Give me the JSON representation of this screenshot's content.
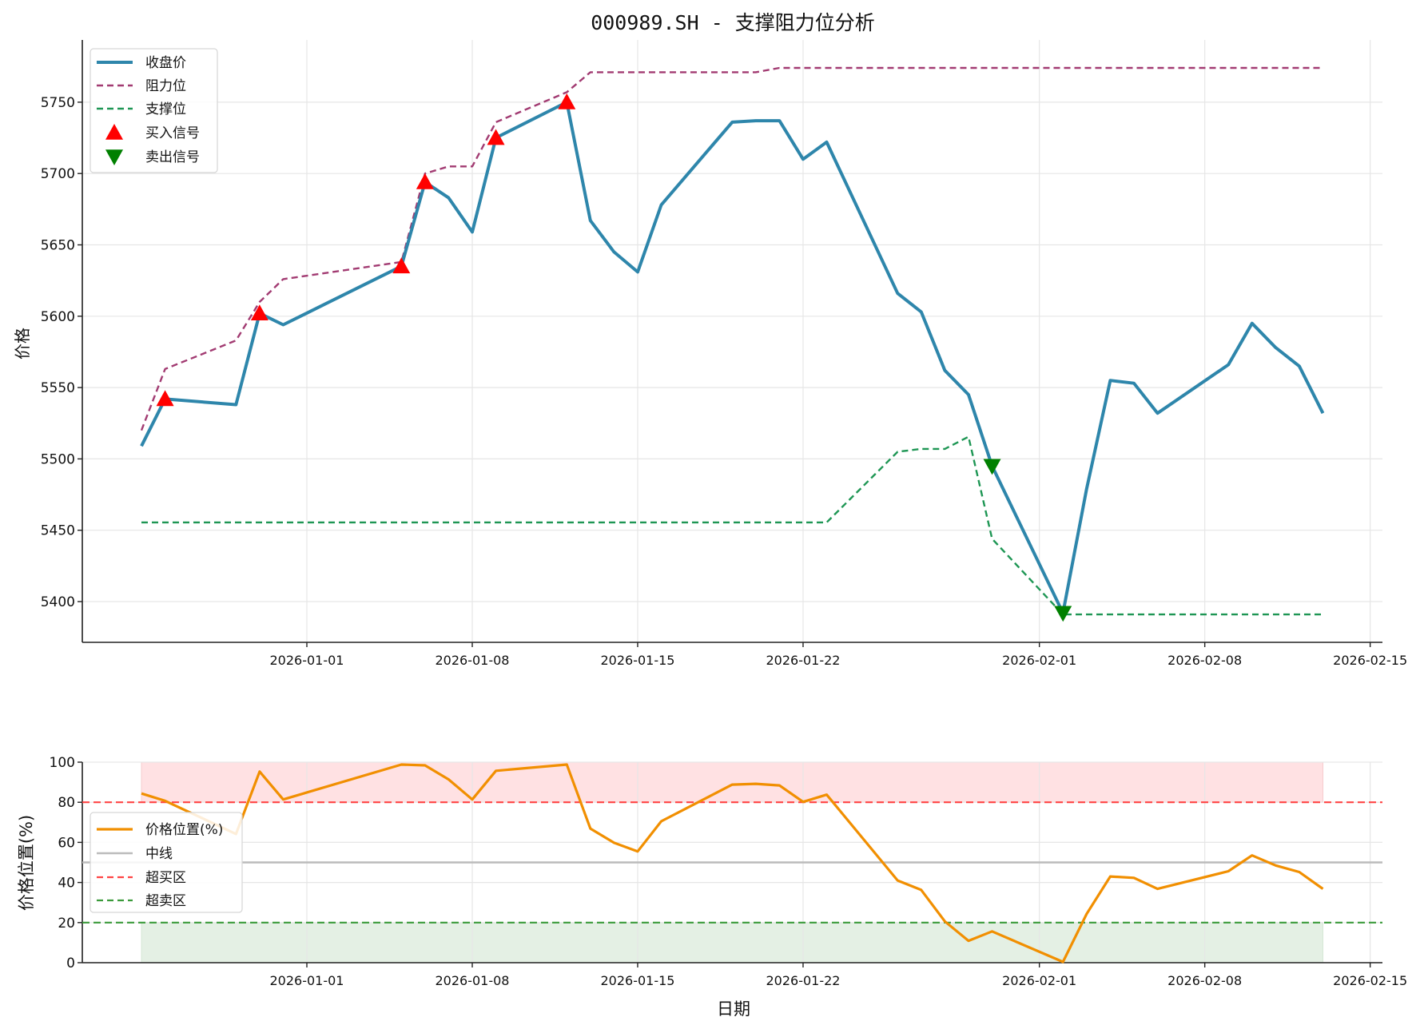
{
  "title": "000989.SH - 支撑阻力位分析",
  "colors": {
    "close": "#2E86AB",
    "resistance": "#A23B72",
    "support": "#1E9654",
    "buy": "#FF0000",
    "sell": "#008000",
    "position": "#F18F01",
    "midline": "#BBBBBB",
    "overbought": "#FF4444",
    "oversold": "#3A9A3A",
    "overbought_fill": "#FFE1E3",
    "oversold_fill": "#E4F0E4",
    "grid": "#E6E6E6",
    "axis": "#222222"
  },
  "chart_data": [
    {
      "type": "line",
      "title": "000989.SH - 支撑阻力位分析",
      "xlabel": "",
      "ylabel": "价格",
      "ylim": [
        5370,
        5795
      ],
      "yticks": [
        5400,
        5450,
        5500,
        5550,
        5600,
        5650,
        5700,
        5750
      ],
      "xticks": [
        "2026-01-01",
        "2026-01-08",
        "2026-01-15",
        "2026-01-22",
        "2026-02-01",
        "2026-02-08",
        "2026-02-15"
      ],
      "grid": true,
      "legend_position": "upper left",
      "x": [
        "2025-12-25",
        "2025-12-26",
        "2025-12-29",
        "2025-12-30",
        "2025-12-31",
        "2026-01-05",
        "2026-01-06",
        "2026-01-07",
        "2026-01-08",
        "2026-01-09",
        "2026-01-12",
        "2026-01-13",
        "2026-01-14",
        "2026-01-15",
        "2026-01-16",
        "2026-01-19",
        "2026-01-20",
        "2026-01-21",
        "2026-01-22",
        "2026-01-23",
        "2026-01-26",
        "2026-01-27",
        "2026-01-28",
        "2026-01-29",
        "2026-01-30",
        "2026-02-02",
        "2026-02-03",
        "2026-02-04",
        "2026-02-05",
        "2026-02-06",
        "2026-02-09",
        "2026-02-10",
        "2026-02-11",
        "2026-02-12",
        "2026-02-13"
      ],
      "series": [
        {
          "name": "收盘价",
          "style": "solid",
          "values": [
            5509,
            5542,
            5538,
            5602,
            5594,
            5635,
            5694,
            5683,
            5659,
            5725,
            5750,
            5667,
            5645,
            5631,
            5678,
            5736,
            5737,
            5737,
            5710,
            5722,
            5616,
            5603,
            5562,
            5545,
            5495,
            5392,
            5479,
            5555,
            5553,
            5532,
            5566,
            5595,
            5578,
            5565,
            5532
          ]
        },
        {
          "name": "阻力位",
          "style": "dashed",
          "values": [
            5520,
            5563,
            5583,
            5610,
            5626,
            5638,
            5700,
            5705,
            5705,
            5736,
            5757,
            5771,
            5771,
            5771,
            5771,
            5771,
            5771,
            5774,
            5774,
            5774,
            5774,
            5774,
            5774,
            5774,
            5774,
            5774,
            5774,
            5774,
            5774,
            5774,
            5774,
            5774,
            5774,
            5774,
            5774
          ]
        },
        {
          "name": "支撑位",
          "style": "dashed",
          "values": [
            5455.5,
            5455.5,
            5455.5,
            5455.5,
            5455.5,
            5455.5,
            5455.5,
            5455.5,
            5455.5,
            5455.5,
            5455.5,
            5455.5,
            5455.5,
            5455.5,
            5455.5,
            5455.5,
            5455.5,
            5455.5,
            5455.5,
            5455.5,
            5505,
            5507,
            5507,
            5515.5,
            5444,
            5391,
            5391,
            5391,
            5391,
            5391,
            5391,
            5391,
            5391,
            5391,
            5391
          ]
        }
      ],
      "markers": [
        {
          "name": "买入信号",
          "shape": "triangle-up",
          "points": [
            {
              "x": "2025-12-26",
              "y": 5542
            },
            {
              "x": "2025-12-30",
              "y": 5602
            },
            {
              "x": "2026-01-05",
              "y": 5635
            },
            {
              "x": "2026-01-06",
              "y": 5694
            },
            {
              "x": "2026-01-09",
              "y": 5725
            },
            {
              "x": "2026-01-12",
              "y": 5750
            }
          ]
        },
        {
          "name": "卖出信号",
          "shape": "triangle-down",
          "points": [
            {
              "x": "2026-01-30",
              "y": 5495
            },
            {
              "x": "2026-02-02",
              "y": 5392
            }
          ]
        }
      ]
    },
    {
      "type": "line",
      "title": "",
      "xlabel": "日期",
      "ylabel": "价格位置(%)",
      "ylim": [
        0,
        100
      ],
      "yticks": [
        0,
        20,
        40,
        60,
        80,
        100
      ],
      "xticks": [
        "2026-01-01",
        "2026-01-08",
        "2026-01-15",
        "2026-01-22",
        "2026-02-01",
        "2026-02-08",
        "2026-02-15"
      ],
      "grid": true,
      "legend_position": "center left",
      "series": [
        {
          "name": "价格位置(%)",
          "style": "solid",
          "values": [
            84.4,
            80.7,
            64.2,
            95.3,
            81.4,
            98.8,
            98.4,
            91.4,
            81.4,
            95.7,
            98.8,
            66.9,
            59.8,
            55.5,
            70.5,
            88.8,
            89.2,
            88.4,
            80.2,
            83.8,
            41.0,
            36.3,
            20.6,
            10.9,
            15.6,
            0.4,
            24.3,
            43.0,
            42.3,
            36.8,
            45.6,
            53.5,
            48.5,
            45.2,
            36.8
          ]
        }
      ],
      "hlines": [
        {
          "name": "中线",
          "y": 50,
          "style": "solid"
        },
        {
          "name": "超买区",
          "y": 80,
          "style": "dashed"
        },
        {
          "name": "超卖区",
          "y": 20,
          "style": "dashed"
        }
      ],
      "bands": [
        {
          "name": "overbought-zone",
          "from": 80,
          "to": 100
        },
        {
          "name": "oversold-zone",
          "from": 0,
          "to": 20
        }
      ]
    }
  ]
}
